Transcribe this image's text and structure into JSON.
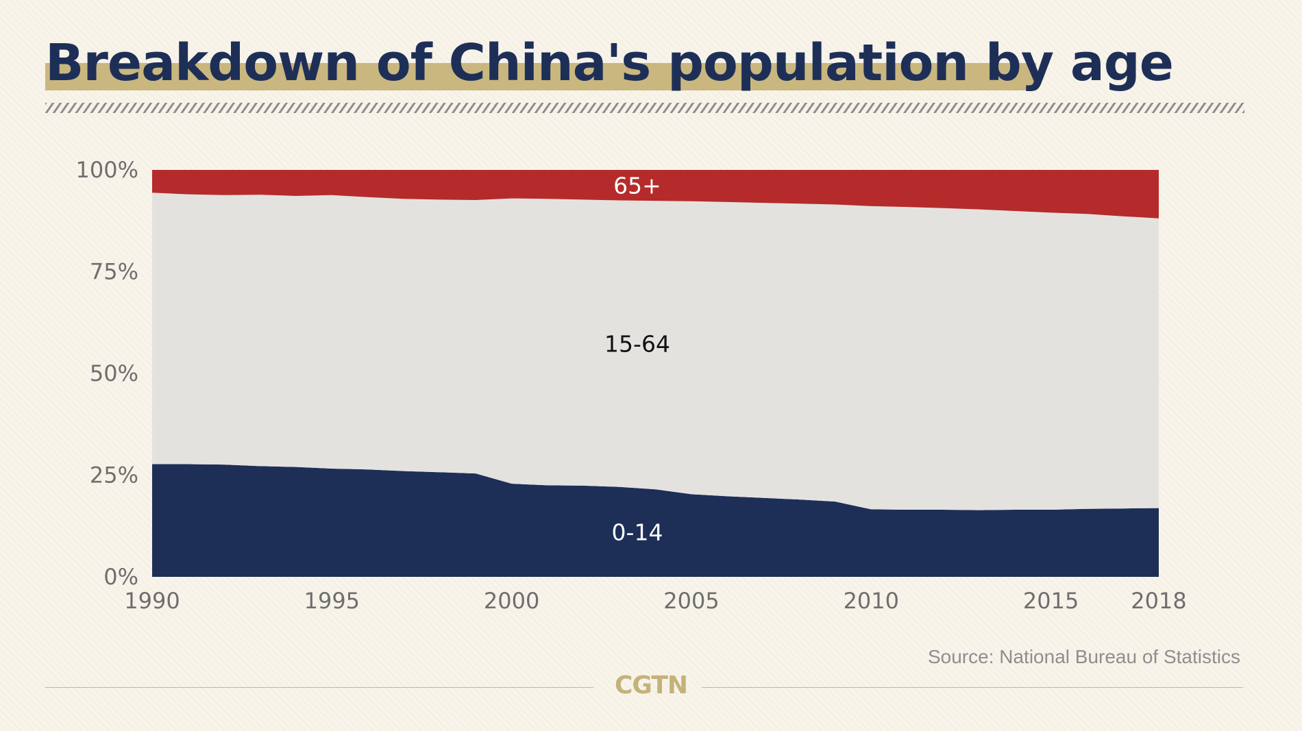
{
  "title": "Breakdown of China's population by age",
  "source": "Source: National Bureau of Statistics",
  "logo": "CGTN",
  "colors": {
    "age_0_14": "#1e2f57",
    "age_15_64": "#e4e2df",
    "age_65_plus": "#b52b2b",
    "title": "#1e2f57",
    "title_highlight": "#c9b77f",
    "axis_text": "#6e6e6e"
  },
  "chart_data": {
    "type": "area",
    "stacked": true,
    "normalized": true,
    "title": "Breakdown of China's population by age",
    "xlabel": "",
    "ylabel": "",
    "x": [
      1990,
      1991,
      1992,
      1993,
      1994,
      1995,
      1996,
      1997,
      1998,
      1999,
      2000,
      2001,
      2002,
      2003,
      2004,
      2005,
      2006,
      2007,
      2008,
      2009,
      2010,
      2011,
      2012,
      2013,
      2014,
      2015,
      2016,
      2017,
      2018
    ],
    "x_ticks": [
      "1990",
      "1995",
      "2000",
      "2005",
      "2010",
      "2015",
      "2018"
    ],
    "y_ticks": [
      "0%",
      "25%",
      "50%",
      "75%",
      "100%"
    ],
    "ylim": [
      0,
      100
    ],
    "xlim": [
      1990,
      2018
    ],
    "grid": false,
    "legend": "inline labels",
    "series": [
      {
        "name": "0-14",
        "values": [
          27.7,
          27.7,
          27.6,
          27.2,
          27.0,
          26.6,
          26.4,
          26.0,
          25.7,
          25.4,
          22.9,
          22.5,
          22.4,
          22.1,
          21.5,
          20.3,
          19.8,
          19.4,
          19.0,
          18.5,
          16.6,
          16.5,
          16.5,
          16.4,
          16.5,
          16.5,
          16.7,
          16.8,
          16.9
        ]
      },
      {
        "name": "15-64",
        "values": [
          66.7,
          66.3,
          66.2,
          66.7,
          66.6,
          67.2,
          66.9,
          66.9,
          67.0,
          67.2,
          70.1,
          70.4,
          70.3,
          70.4,
          70.9,
          72.0,
          72.3,
          72.5,
          72.7,
          73.0,
          74.5,
          74.4,
          74.1,
          73.9,
          73.4,
          73.0,
          72.5,
          71.8,
          71.2
        ]
      },
      {
        "name": "65+",
        "values": [
          5.6,
          6.0,
          6.2,
          6.1,
          6.4,
          6.2,
          6.7,
          7.1,
          7.3,
          7.4,
          7.0,
          7.1,
          7.3,
          7.5,
          7.6,
          7.7,
          7.9,
          8.1,
          8.3,
          8.5,
          8.9,
          9.1,
          9.4,
          9.7,
          10.1,
          10.5,
          10.8,
          11.4,
          11.9
        ]
      }
    ]
  }
}
